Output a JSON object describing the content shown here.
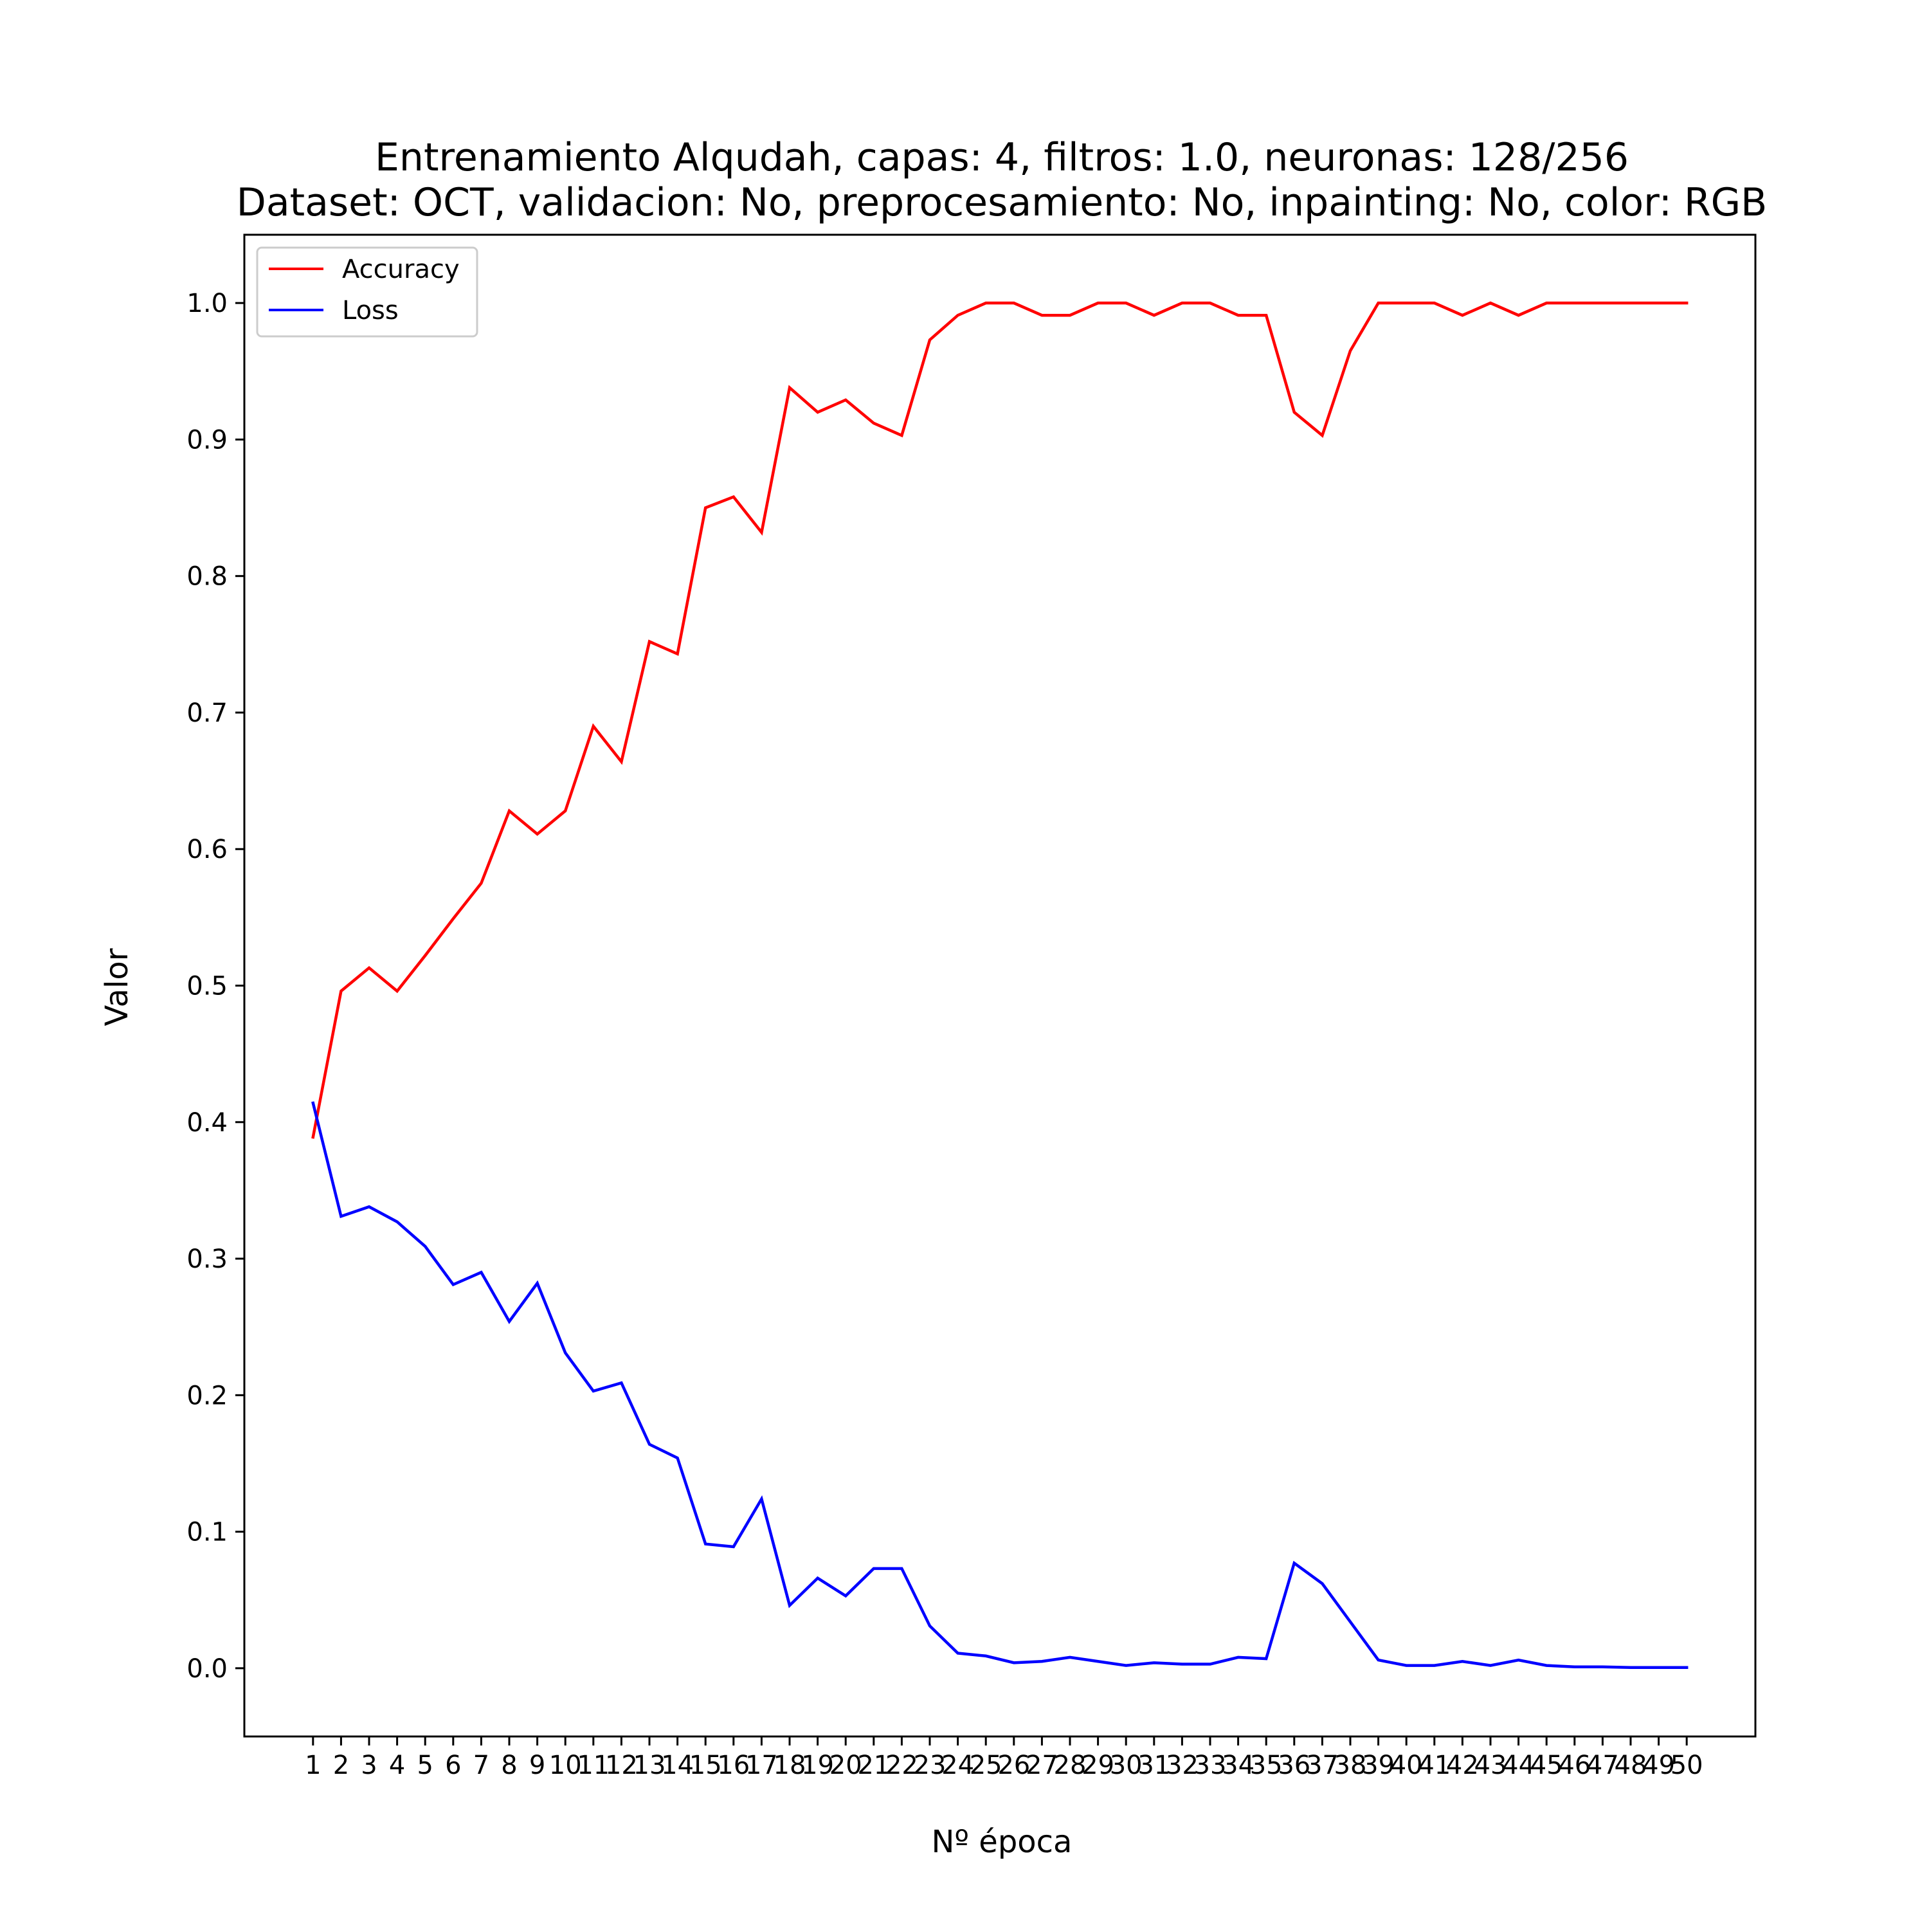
{
  "chart_data": {
    "type": "line",
    "title": "Entrenamiento Alqudah, capas: 4, filtros: 1.0, neuronas: 128/256",
    "subtitle": "Dataset: OCT, validacion: No, preprocesamiento: No, inpainting: No, color: RGB",
    "xlabel": "Nº época",
    "ylabel": "Valor",
    "x": [
      1,
      2,
      3,
      4,
      5,
      6,
      7,
      8,
      9,
      10,
      11,
      12,
      13,
      14,
      15,
      16,
      17,
      18,
      19,
      20,
      21,
      22,
      23,
      24,
      25,
      26,
      27,
      28,
      29,
      30,
      31,
      32,
      33,
      34,
      35,
      36,
      37,
      38,
      39,
      40,
      41,
      42,
      43,
      44,
      45,
      46,
      47,
      48,
      49,
      50
    ],
    "xlim": [
      -1.45,
      52.45
    ],
    "ylim": [
      -0.05,
      1.05
    ],
    "yticks": [
      0.0,
      0.1,
      0.2,
      0.3,
      0.4,
      0.5,
      0.6,
      0.7,
      0.8,
      0.9,
      1.0
    ],
    "ytick_labels": [
      "0.0",
      "0.1",
      "0.2",
      "0.3",
      "0.4",
      "0.5",
      "0.6",
      "0.7",
      "0.8",
      "0.9",
      "1.0"
    ],
    "grid": false,
    "legend_position": "top-left",
    "series": [
      {
        "name": "Accuracy",
        "color": "#ff0000",
        "values": [
          0.389,
          0.496,
          0.513,
          0.496,
          0.522,
          0.549,
          0.575,
          0.628,
          0.611,
          0.628,
          0.69,
          0.664,
          0.752,
          0.743,
          0.85,
          0.858,
          0.832,
          0.938,
          0.92,
          0.929,
          0.912,
          0.903,
          0.973,
          0.991,
          1.0,
          1.0,
          0.991,
          0.991,
          1.0,
          1.0,
          0.991,
          1.0,
          1.0,
          0.991,
          0.991,
          0.92,
          0.903,
          0.965,
          1.0,
          1.0,
          1.0,
          0.991,
          1.0,
          0.991,
          1.0,
          1.0,
          1.0,
          1.0,
          1.0,
          1.0
        ]
      },
      {
        "name": "Loss",
        "color": "#0000ff",
        "values": [
          0.414,
          0.331,
          0.338,
          0.327,
          0.309,
          0.281,
          0.29,
          0.254,
          0.282,
          0.231,
          0.203,
          0.209,
          0.164,
          0.154,
          0.091,
          0.089,
          0.124,
          0.046,
          0.066,
          0.053,
          0.073,
          0.073,
          0.031,
          0.011,
          0.009,
          0.004,
          0.005,
          0.008,
          0.005,
          0.002,
          0.004,
          0.003,
          0.003,
          0.008,
          0.007,
          0.077,
          0.062,
          0.034,
          0.006,
          0.002,
          0.002,
          0.005,
          0.002,
          0.006,
          0.002,
          0.001,
          0.001,
          0.0005,
          0.0005,
          0.0005
        ]
      }
    ]
  }
}
